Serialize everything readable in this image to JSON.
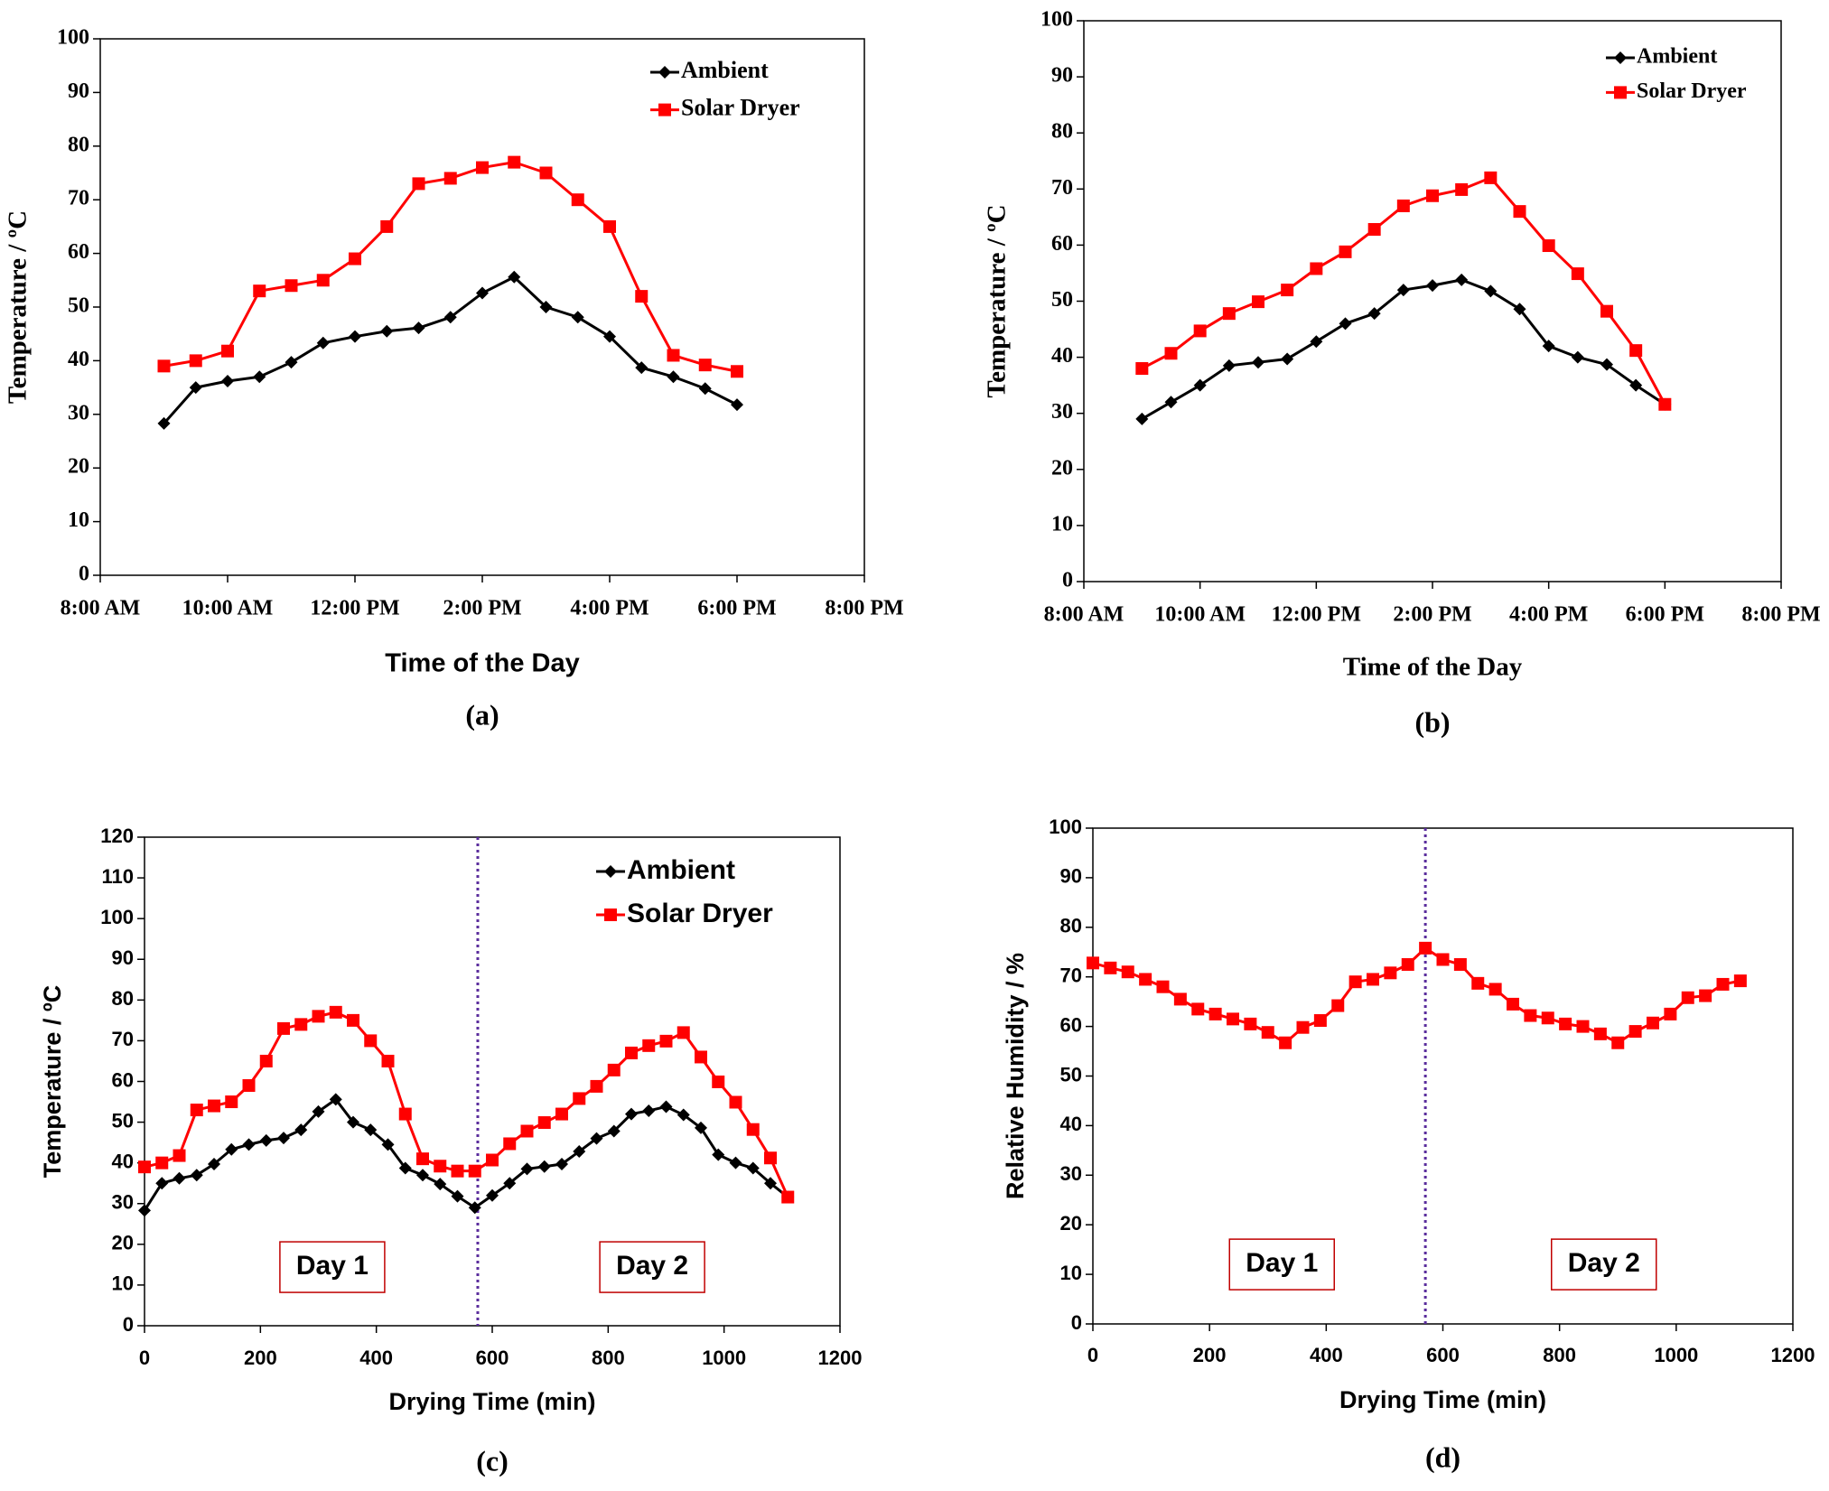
{
  "chart_data": [
    {
      "type": "line",
      "label": "(a)",
      "xlabel": "Time of the Day",
      "ylabel": "Temperature / ºC",
      "x": [
        9,
        9.5,
        10,
        10.5,
        11,
        11.5,
        12,
        12.5,
        13,
        13.5,
        14,
        14.5,
        15,
        15.5,
        16,
        16.5,
        17,
        17.5,
        18
      ],
      "xlim": [
        8,
        20
      ],
      "xticks": [
        {
          "value": 8,
          "label": "8:00 AM"
        },
        {
          "value": 10,
          "label": "10:00 AM"
        },
        {
          "value": 12,
          "label": "12:00 PM"
        },
        {
          "value": 14,
          "label": "2:00 PM"
        },
        {
          "value": 16,
          "label": "4:00 PM"
        },
        {
          "value": 18,
          "label": "6:00 PM"
        },
        {
          "value": 20,
          "label": "8:00 PM"
        }
      ],
      "ylim": [
        0,
        100
      ],
      "yticks": [
        0,
        10,
        20,
        30,
        40,
        50,
        60,
        70,
        80,
        90,
        100
      ],
      "legend": "upper right",
      "series": [
        {
          "name": "Ambient",
          "color": "#000000",
          "marker": "diamond",
          "values": [
            28.3,
            35,
            36.2,
            37,
            39.7,
            43.3,
            44.5,
            45.5,
            46.1,
            48.1,
            52.6,
            55.6,
            50,
            48.1,
            44.5,
            38.7,
            37,
            34.8,
            31.8
          ]
        },
        {
          "name": "Solar Dryer",
          "color": "#ff0000",
          "marker": "square",
          "values": [
            39,
            40,
            41.8,
            53,
            54,
            55,
            59,
            65,
            73,
            74,
            76,
            77,
            75,
            70,
            65,
            52,
            41,
            39.2,
            38
          ]
        }
      ]
    },
    {
      "type": "line",
      "label": "(b)",
      "xlabel": "Time of the Day",
      "ylabel": "Temperature / ºC",
      "x": [
        9,
        9.5,
        10,
        10.5,
        11,
        11.5,
        12,
        12.5,
        13,
        13.5,
        14,
        14.5,
        15,
        15.5,
        16,
        16.5,
        17,
        17.5,
        18
      ],
      "xlim": [
        8,
        20
      ],
      "xticks": [
        {
          "value": 8,
          "label": "8:00 AM"
        },
        {
          "value": 10,
          "label": "10:00 AM"
        },
        {
          "value": 12,
          "label": "12:00 PM"
        },
        {
          "value": 14,
          "label": "2:00 PM"
        },
        {
          "value": 16,
          "label": "4:00 PM"
        },
        {
          "value": 18,
          "label": "6:00 PM"
        },
        {
          "value": 20,
          "label": "8:00 PM"
        }
      ],
      "ylim": [
        0,
        100
      ],
      "yticks": [
        0,
        10,
        20,
        30,
        40,
        50,
        60,
        70,
        80,
        90,
        100
      ],
      "legend": "upper right",
      "series": [
        {
          "name": "Ambient",
          "color": "#000000",
          "marker": "diamond",
          "values": [
            29,
            32,
            35,
            38.5,
            39.1,
            39.7,
            42.8,
            46,
            47.8,
            52,
            52.8,
            53.8,
            51.8,
            48.6,
            42,
            40,
            38.7,
            35,
            31.6
          ]
        },
        {
          "name": "Solar Dryer",
          "color": "#ff0000",
          "marker": "square",
          "values": [
            38,
            40.7,
            44.7,
            47.8,
            49.9,
            52,
            55.8,
            58.8,
            62.8,
            67,
            68.8,
            69.9,
            72,
            66,
            59.9,
            54.9,
            48.2,
            41.2,
            31.6
          ]
        }
      ]
    },
    {
      "type": "line",
      "label": "(c)",
      "xlabel": "Drying Time (min)",
      "ylabel": "Temperature / ºC",
      "x": [
        0,
        30,
        60,
        90,
        120,
        150,
        180,
        210,
        240,
        270,
        300,
        330,
        360,
        390,
        420,
        450,
        480,
        510,
        540,
        570,
        600,
        630,
        660,
        690,
        720,
        750,
        780,
        810,
        840,
        870,
        900,
        930,
        960,
        990,
        1020,
        1050,
        1080,
        1110
      ],
      "xlim": [
        0,
        1200
      ],
      "xticks": [
        0,
        200,
        400,
        600,
        800,
        1000,
        1200
      ],
      "ylim": [
        0,
        120
      ],
      "yticks": [
        0,
        10,
        20,
        30,
        40,
        50,
        60,
        70,
        80,
        90,
        100,
        110,
        120
      ],
      "legend": "upper right",
      "vline": 575,
      "annotations": [
        "Day 1",
        "Day 2"
      ],
      "series": [
        {
          "name": "Ambient",
          "color": "#000000",
          "marker": "diamond",
          "values": [
            28.3,
            35,
            36.2,
            37,
            39.7,
            43.3,
            44.5,
            45.5,
            46.1,
            48.1,
            52.6,
            55.6,
            50,
            48.1,
            44.5,
            38.7,
            37,
            34.8,
            31.8,
            29,
            32,
            35,
            38.5,
            39.1,
            39.7,
            42.8,
            46,
            47.8,
            52,
            52.8,
            53.8,
            51.8,
            48.6,
            42,
            40,
            38.7,
            35,
            31.6
          ]
        },
        {
          "name": "Solar Dryer",
          "color": "#ff0000",
          "marker": "square",
          "values": [
            39,
            40,
            41.8,
            53,
            54,
            55,
            59,
            65,
            73,
            74,
            76,
            77,
            75,
            70,
            65,
            52,
            41,
            39.2,
            38,
            38,
            40.7,
            44.7,
            47.8,
            49.9,
            52,
            55.8,
            58.8,
            62.8,
            67,
            68.8,
            69.9,
            72,
            66,
            59.9,
            54.9,
            48.2,
            41.2,
            31.6
          ]
        }
      ]
    },
    {
      "type": "line",
      "label": "(d)",
      "xlabel": "Drying Time (min)",
      "ylabel": "Relative Humidity / %",
      "x": [
        0,
        30,
        60,
        90,
        120,
        150,
        180,
        210,
        240,
        270,
        300,
        330,
        360,
        390,
        420,
        450,
        480,
        510,
        540,
        570,
        600,
        630,
        660,
        690,
        720,
        750,
        780,
        810,
        840,
        870,
        900,
        930,
        960,
        990,
        1020,
        1050,
        1080,
        1110
      ],
      "xlim": [
        0,
        1200
      ],
      "xticks": [
        0,
        200,
        400,
        600,
        800,
        1000,
        1200
      ],
      "ylim": [
        0,
        100
      ],
      "yticks": [
        0,
        10,
        20,
        30,
        40,
        50,
        60,
        70,
        80,
        90,
        100
      ],
      "vline": 570,
      "annotations": [
        "Day 1",
        "Day 2"
      ],
      "series": [
        {
          "color": "#ff0000",
          "marker": "square",
          "values": [
            72.8,
            71.8,
            71,
            69.5,
            68,
            65.5,
            63.5,
            62.5,
            61.5,
            60.5,
            58.8,
            56.7,
            59.8,
            61.2,
            64.2,
            69,
            69.5,
            70.8,
            72.5,
            75.8,
            73.5,
            72.5,
            68.7,
            67.5,
            64.5,
            62.2,
            61.7,
            60.5,
            60,
            58.5,
            56.7,
            59,
            60.7,
            62.5,
            65.8,
            66.2,
            68.5,
            69.2
          ]
        }
      ]
    }
  ]
}
